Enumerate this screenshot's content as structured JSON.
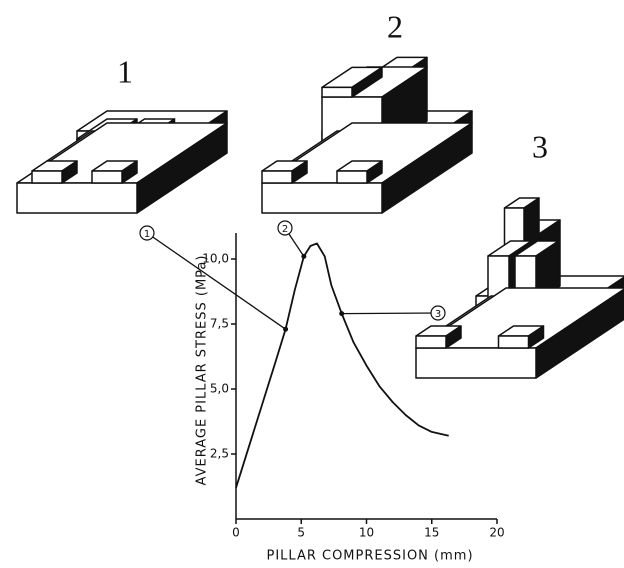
{
  "chart_data": {
    "type": "line",
    "xlabel": "PILLAR COMPRESSION (mm)",
    "ylabel": "AVERAGE PILLAR STRESS (MPa)",
    "x": [
      0,
      1,
      2,
      3,
      3.8,
      4.5,
      5.2,
      5.7,
      6.2,
      6.8,
      7.3,
      8.1,
      9,
      10,
      11,
      12,
      13,
      14,
      15,
      16.3
    ],
    "values": [
      1.2,
      2.8,
      4.4,
      6.0,
      7.3,
      8.8,
      10.1,
      10.5,
      10.6,
      10.1,
      9.0,
      7.9,
      6.8,
      5.9,
      5.1,
      4.5,
      4.0,
      3.6,
      3.35,
      3.2
    ],
    "color": "#111111",
    "xlim": [
      0,
      20
    ],
    "xticks": [
      0,
      5,
      10,
      15,
      20
    ],
    "ylim": [
      0,
      11
    ],
    "yticks": [
      {
        "value": 2.5,
        "label": "2,5"
      },
      {
        "value": 5,
        "label": "5,0"
      },
      {
        "value": 7.5,
        "label": "7,5"
      },
      {
        "value": 10,
        "label": "10,0"
      }
    ],
    "stages": [
      {
        "label": "1",
        "x": 3.8,
        "y": 7.3
      },
      {
        "label": "2",
        "x": 5.2,
        "y": 10.1
      },
      {
        "label": "3",
        "x": 8.1,
        "y": 7.9
      }
    ]
  }
}
